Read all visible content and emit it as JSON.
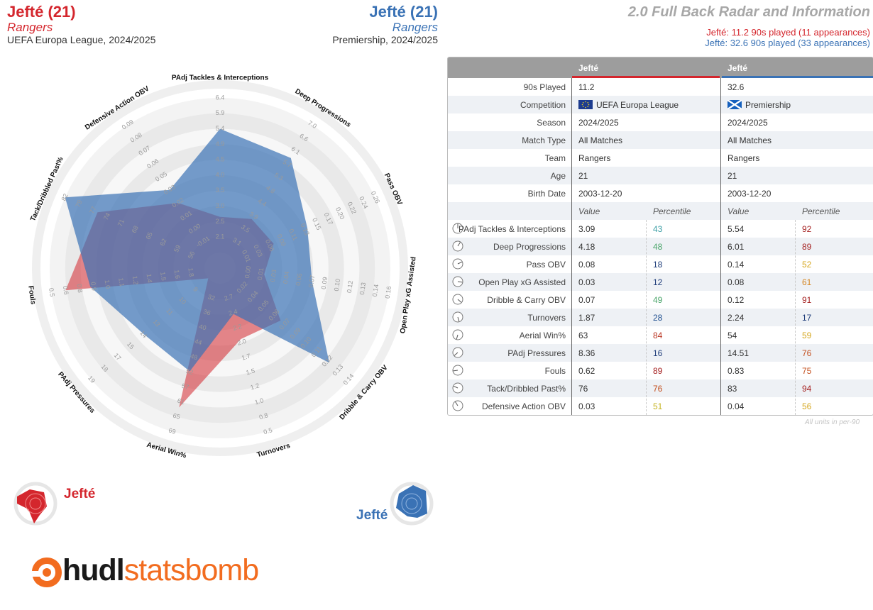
{
  "header": {
    "player1": {
      "name": "Jefté (21)",
      "team": "Rangers",
      "competition": "UEFA Europa League, 2024/2025"
    },
    "player2": {
      "name": "Jefté (21)",
      "team": "Rangers",
      "competition": "Premiership, 2024/2025"
    },
    "title": "2.0 Full Back Radar and Information",
    "subtitle1": "Jefté: 11.2 90s played (11 appearances)",
    "subtitle2": "Jefté: 32.6 90s played (33 appearances)"
  },
  "colors": {
    "player1": "#d4262d",
    "player2": "#3a72b5",
    "overlap": "#6c5d97",
    "brand": "#f26c1f"
  },
  "chart_data": {
    "type": "radar",
    "axes": [
      {
        "label": "PAdj Tackles & Interceptions",
        "ticks": [
          "2.1",
          "2.5",
          "3.0",
          "3.5",
          "4.0",
          "4.5",
          "4.9",
          "5.4",
          "5.9",
          "6.4"
        ],
        "min": 2.1,
        "max": 6.4
      },
      {
        "label": "Deep Progressions",
        "ticks": [
          "3.1",
          "3.5",
          "3.9",
          "4.4",
          "4.8",
          "5.3",
          "5.7",
          "6.1",
          "6.6",
          "7.0"
        ],
        "min": 3.1,
        "max": 7.0
      },
      {
        "label": "Pass OBV",
        "ticks": [
          "0.01",
          "0.03",
          "0.06",
          "0.09",
          "0.11",
          "0.13",
          "0.15",
          "0.17",
          "0.20",
          "0.22",
          "0.24",
          "0.26"
        ],
        "min": 0.01,
        "max": 0.26
      },
      {
        "label": "Open Play xG Assisted",
        "ticks": [
          "0.00",
          "0.01",
          "0.03",
          "0.04",
          "0.06",
          "0.07",
          "0.09",
          "0.10",
          "0.12",
          "0.13",
          "0.14",
          "0.16"
        ],
        "min": 0.0,
        "max": 0.16
      },
      {
        "label": "Dribble & Carry OBV",
        "ticks": [
          "0.02",
          "0.04",
          "0.05",
          "0.06",
          "0.07",
          "0.09",
          "0.10",
          "0.11",
          "0.12",
          "0.13",
          "0.14"
        ],
        "min": 0.02,
        "max": 0.14
      },
      {
        "label": "Turnovers",
        "ticks": [
          "2.7",
          "2.4",
          "2.2",
          "2.0",
          "1.7",
          "1.5",
          "1.2",
          "1.0",
          "0.8",
          "0.5"
        ],
        "min": 2.7,
        "max": 0.5
      },
      {
        "label": "Aerial Win%",
        "ticks": [
          "32",
          "36",
          "40",
          "44",
          "48",
          "52",
          "57",
          "61",
          "65",
          "69"
        ],
        "min": 32,
        "max": 69
      },
      {
        "label": "PAdj Pressures",
        "ticks": [
          "9",
          "10",
          "11",
          "13",
          "14",
          "15",
          "17",
          "18",
          "19"
        ],
        "min": 9,
        "max": 19
      },
      {
        "label": "Fouls",
        "ticks": [
          "1.8",
          "1.6",
          "1.5",
          "1.4",
          "1.2",
          "1.1",
          "1.0",
          "0.9",
          "0.8",
          "0.6",
          "0.5"
        ],
        "min": 1.8,
        "max": 0.5
      },
      {
        "label": "Tack/Dribbled Past%",
        "ticks": [
          "56",
          "59",
          "62",
          "65",
          "68",
          "71",
          "74",
          "77",
          "79",
          "82"
        ],
        "min": 56,
        "max": 82
      },
      {
        "label": "Defensive Action OBV",
        "ticks": [
          "-0.01",
          "0.00",
          "0.01",
          "0.02",
          "0.03",
          "0.05",
          "0.06",
          "0.07",
          "0.08",
          "0.09"
        ],
        "min": -0.01,
        "max": 0.09
      }
    ],
    "series": [
      {
        "name": "Jefté",
        "values": [
          3.09,
          4.18,
          0.08,
          0.03,
          0.07,
          1.87,
          63,
          8.36,
          0.62,
          76,
          0.03
        ]
      },
      {
        "name": "Jefté",
        "values": [
          5.54,
          6.01,
          0.14,
          0.08,
          0.12,
          2.24,
          54,
          14.51,
          0.83,
          83,
          0.04
        ]
      }
    ]
  },
  "table": {
    "col1": "Jefté",
    "col2": "Jefté",
    "info_rows": [
      {
        "label": "90s Played",
        "v1": "11.2",
        "v2": "32.6"
      },
      {
        "label": "Competition",
        "v1": "UEFA Europa League",
        "v2": "Premiership",
        "flags": true
      },
      {
        "label": "Season",
        "v1": "2024/2025",
        "v2": "2024/2025"
      },
      {
        "label": "Match Type",
        "v1": "All Matches",
        "v2": "All Matches"
      },
      {
        "label": "Team",
        "v1": "Rangers",
        "v2": "Rangers"
      },
      {
        "label": "Age",
        "v1": "21",
        "v2": "21"
      },
      {
        "label": "Birth Date",
        "v1": "2003-12-20",
        "v2": "2003-12-20"
      }
    ],
    "value_header": "Value",
    "percentile_header": "Percentile",
    "metrics": [
      {
        "label": "PAdj Tackles & Interceptions",
        "v1": "3.09",
        "p1": "43",
        "p1color": "#3a9ea5",
        "v2": "5.54",
        "p2": "92",
        "p2color": "#a41f1f"
      },
      {
        "label": "Deep Progressions",
        "v1": "4.18",
        "p1": "48",
        "p1color": "#4aa56a",
        "v2": "6.01",
        "p2": "89",
        "p2color": "#a41f1f"
      },
      {
        "label": "Pass OBV",
        "v1": "0.08",
        "p1": "18",
        "p1color": "#1f3d7a",
        "v2": "0.14",
        "p2": "52",
        "p2color": "#d5a71f"
      },
      {
        "label": "Open Play xG Assisted",
        "v1": "0.03",
        "p1": "12",
        "p1color": "#1f3d7a",
        "v2": "0.08",
        "p2": "61",
        "p2color": "#d4841f"
      },
      {
        "label": "Dribble & Carry OBV",
        "v1": "0.07",
        "p1": "49",
        "p1color": "#4aa56a",
        "v2": "0.12",
        "p2": "91",
        "p2color": "#a41f1f"
      },
      {
        "label": "Turnovers",
        "v1": "1.87",
        "p1": "28",
        "p1color": "#1f4f8f",
        "v2": "2.24",
        "p2": "17",
        "p2color": "#1f3d7a"
      },
      {
        "label": "Aerial Win%",
        "v1": "63",
        "p1": "84",
        "p1color": "#b8321f",
        "v2": "54",
        "p2": "59",
        "p2color": "#d5a71f"
      },
      {
        "label": "PAdj Pressures",
        "v1": "8.36",
        "p1": "16",
        "p1color": "#1f3d7a",
        "v2": "14.51",
        "p2": "76",
        "p2color": "#c4501f"
      },
      {
        "label": "Fouls",
        "v1": "0.62",
        "p1": "89",
        "p1color": "#a41f1f",
        "v2": "0.83",
        "p2": "75",
        "p2color": "#c4501f"
      },
      {
        "label": "Tack/Dribbled Past%",
        "v1": "76",
        "p1": "76",
        "p1color": "#c4501f",
        "v2": "83",
        "p2": "94",
        "p2color": "#a41f1f"
      },
      {
        "label": "Defensive Action OBV",
        "v1": "0.03",
        "p1": "51",
        "p1color": "#c5b31f",
        "v2": "0.04",
        "p2": "56",
        "p2color": "#d5a71f"
      }
    ],
    "footnote": "All units in per-90"
  },
  "legend": {
    "name1": "Jefté",
    "name2": "Jefté"
  },
  "brand": {
    "bold": "hudl",
    "rest": "statsbomb"
  }
}
